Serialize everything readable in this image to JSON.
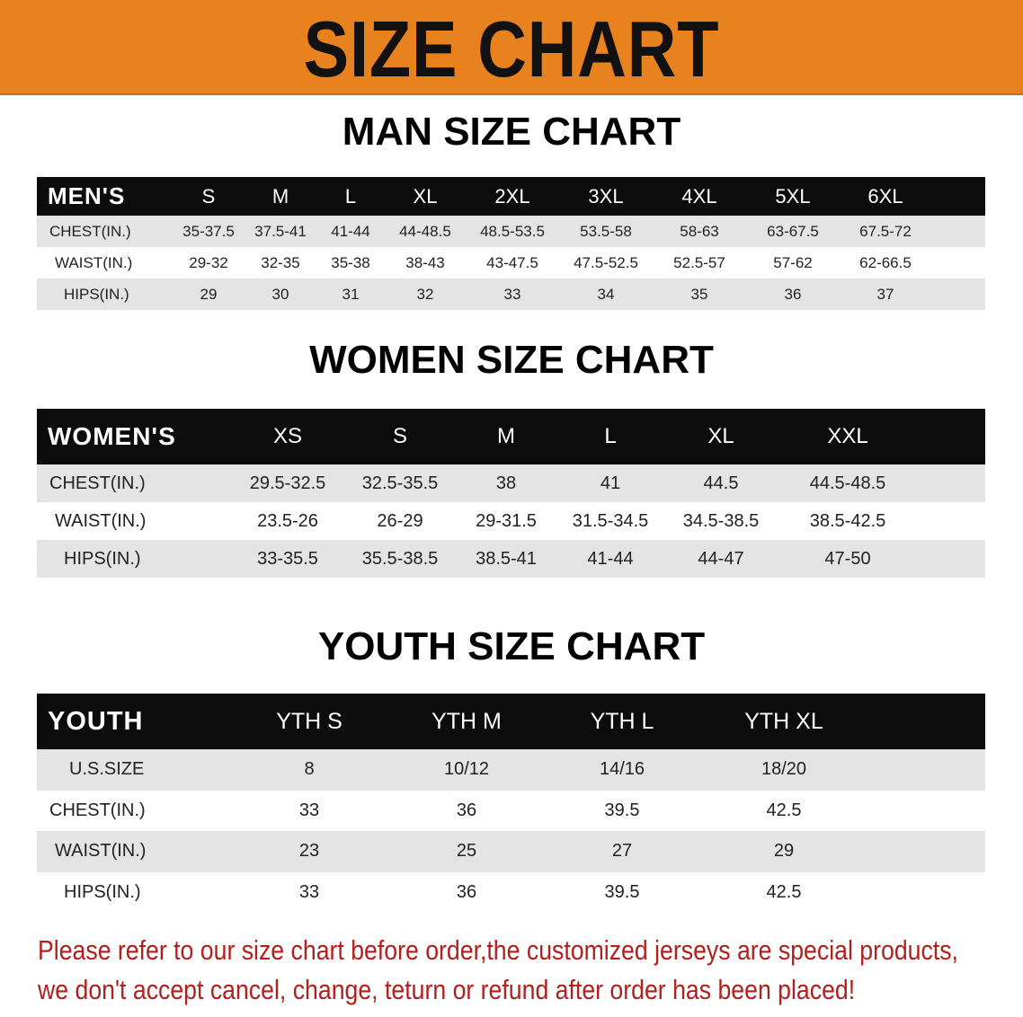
{
  "banner_title": "SIZE CHART",
  "colors": {
    "banner": "#e8821f",
    "header_bg": "#0c0c0c",
    "stripe": "#e4e4e4",
    "note": "#b0211e"
  },
  "men": {
    "title": "MAN SIZE CHART",
    "header": [
      "MEN'S",
      "S",
      "M",
      "L",
      "XL",
      "2XL",
      "3XL",
      "4XL",
      "5XL",
      "6XL"
    ],
    "rows": [
      [
        "CHEST(IN.)",
        "35-37.5",
        "37.5-41",
        "41-44",
        "44-48.5",
        "48.5-53.5",
        "53.5-58",
        "58-63",
        "63-67.5",
        "67.5-72"
      ],
      [
        "WAIST(IN.)",
        "29-32",
        "32-35",
        "35-38",
        "38-43",
        "43-47.5",
        "47.5-52.5",
        "52.5-57",
        "57-62",
        "62-66.5"
      ],
      [
        "HIPS(IN.)",
        "29",
        "30",
        "31",
        "32",
        "33",
        "34",
        "35",
        "36",
        "37"
      ]
    ]
  },
  "women": {
    "title": "WOMEN SIZE CHART",
    "header": [
      "WOMEN'S",
      "XS",
      "S",
      "M",
      "L",
      "XL",
      "XXL"
    ],
    "rows": [
      [
        "CHEST(IN.)",
        "29.5-32.5",
        "32.5-35.5",
        "38",
        "41",
        "44.5",
        "44.5-48.5"
      ],
      [
        "WAIST(IN.)",
        "23.5-26",
        "26-29",
        "29-31.5",
        "31.5-34.5",
        "34.5-38.5",
        "38.5-42.5"
      ],
      [
        "HIPS(IN.)",
        "33-35.5",
        "35.5-38.5",
        "38.5-41",
        "41-44",
        "44-47",
        "47-50"
      ]
    ]
  },
  "youth": {
    "title": "YOUTH SIZE CHART",
    "header": [
      "YOUTH",
      "YTH S",
      "YTH M",
      "YTH L",
      "YTH XL"
    ],
    "rows": [
      [
        "U.S.SIZE",
        "8",
        "10/12",
        "14/16",
        "18/20"
      ],
      [
        "CHEST(IN.)",
        "33",
        "36",
        "39.5",
        "42.5"
      ],
      [
        "WAIST(IN.)",
        "23",
        "25",
        "27",
        "29"
      ],
      [
        "HIPS(IN.)",
        "33",
        "36",
        "39.5",
        "42.5"
      ]
    ]
  },
  "note": {
    "line1": "Please refer to our size chart before order,the customized jerseys are special products,",
    "line2": "we don't accept cancel, change, teturn or refund after order has been placed!"
  }
}
